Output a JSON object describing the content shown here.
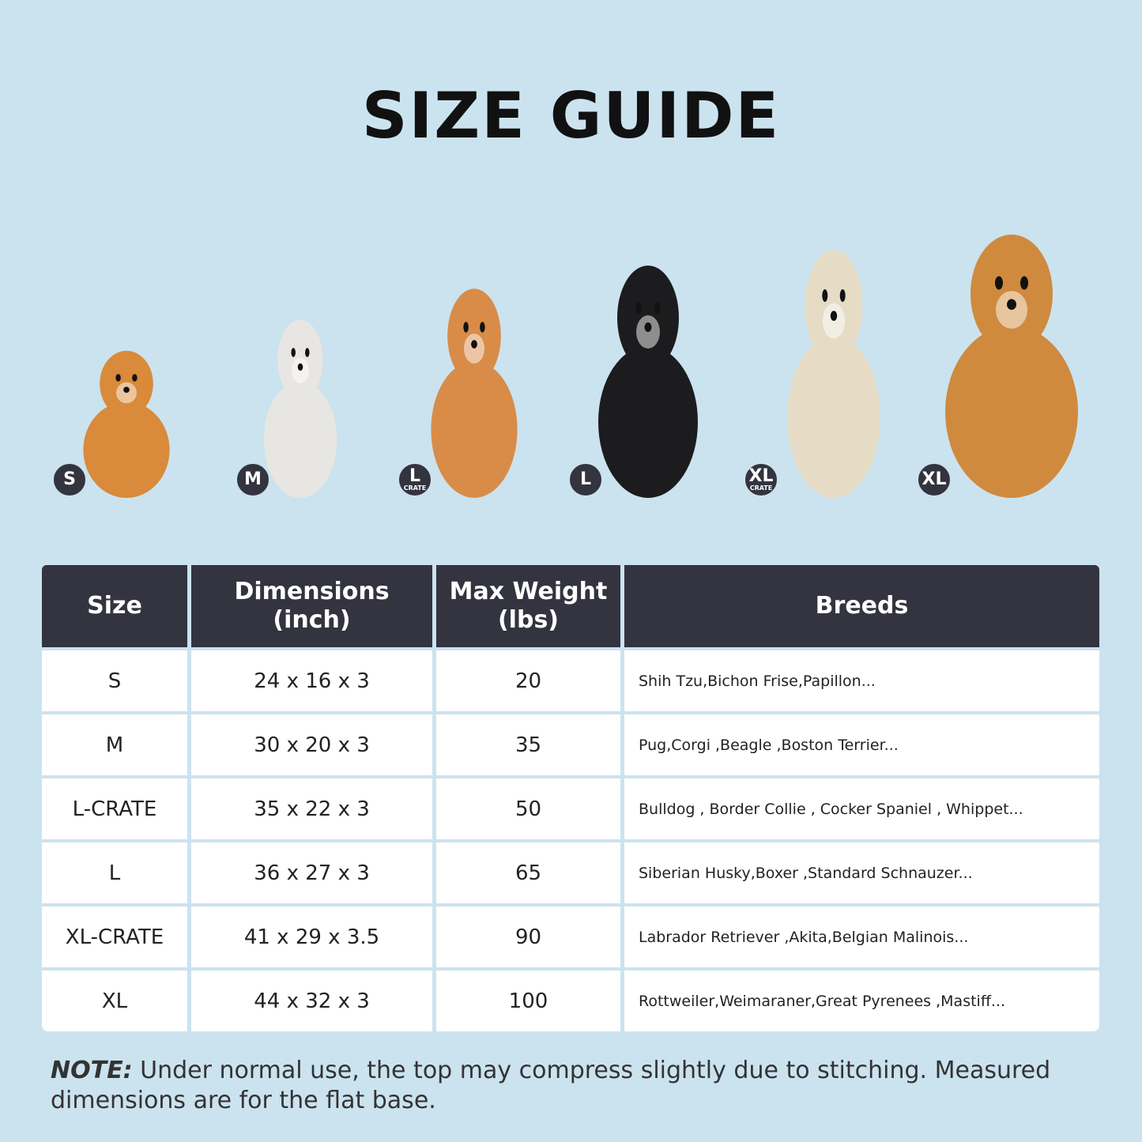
{
  "title": "SIZE GUIDE",
  "dogs": [
    {
      "badge": "S",
      "sub": "",
      "color": "#d98a3a"
    },
    {
      "badge": "M",
      "sub": "",
      "color": "#e8e6e2"
    },
    {
      "badge": "L",
      "sub": "CRATE",
      "color": "#d88c48"
    },
    {
      "badge": "L",
      "sub": "",
      "color": "#1c1c1e"
    },
    {
      "badge": "XL",
      "sub": "CRATE",
      "color": "#e6dcc6"
    },
    {
      "badge": "XL",
      "sub": "",
      "color": "#cf8a3e"
    }
  ],
  "table": {
    "headers": [
      "Size",
      "Dimensions\n(inch)",
      "Max Weight\n(lbs)",
      "Breeds"
    ],
    "rows": [
      [
        "S",
        "24 x 16 x 3",
        "20",
        "Shih Tzu,Bichon Frise,Papillon..."
      ],
      [
        "M",
        "30 x 20 x 3",
        "35",
        "Pug,Corgi ,Beagle ,Boston Terrier..."
      ],
      [
        "L-CRATE",
        "35 x 22 x 3",
        "50",
        "Bulldog , Border Collie , Cocker Spaniel , Whippet..."
      ],
      [
        "L",
        "36 x 27 x 3",
        "65",
        "Siberian Husky,Boxer ,Standard Schnauzer..."
      ],
      [
        "XL-CRATE",
        "41 x 29 x 3.5",
        "90",
        "Labrador Retriever ,Akita,Belgian Malinois..."
      ],
      [
        "XL",
        "44 x 32 x 3",
        "100",
        "Rottweiler,Weimaraner,Great Pyrenees ,Mastiff..."
      ]
    ]
  },
  "note": {
    "label": "NOTE:",
    "text": " Under normal use, the top may compress slightly due to stitching. Measured dimensions are for the flat base."
  },
  "colors": {
    "background": "#cbe3ef",
    "header": "#33343f"
  }
}
